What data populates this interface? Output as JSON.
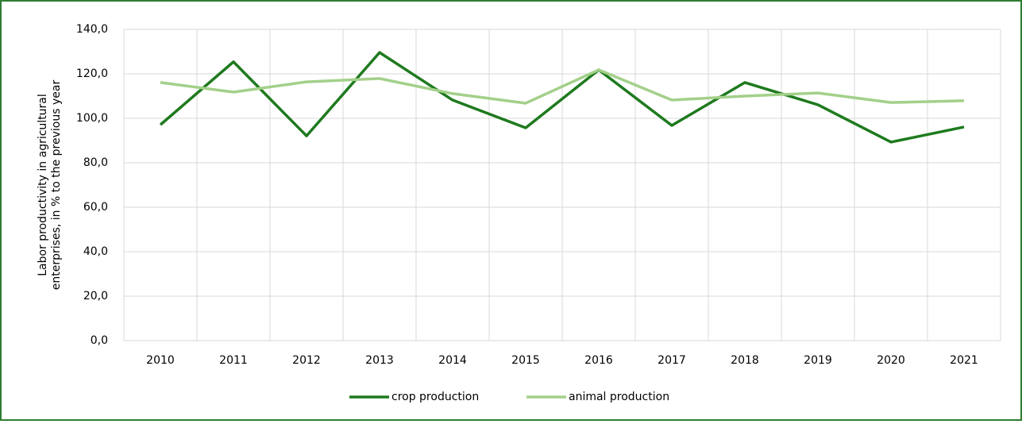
{
  "chart_data": {
    "type": "line",
    "y_label": "Labor productivity in agricultural enterprises, in % to the previous year",
    "categories": [
      "2010",
      "2011",
      "2012",
      "2013",
      "2014",
      "2015",
      "2016",
      "2017",
      "2018",
      "2019",
      "2020",
      "2021"
    ],
    "series": [
      {
        "name": "crop production",
        "color": "#1e7a1e",
        "values": [
          97.1,
          125.4,
          92.1,
          129.6,
          108.2,
          95.7,
          121.8,
          96.8,
          116.1,
          106.1,
          89.3,
          96.1
        ]
      },
      {
        "name": "animal production",
        "color": "#a3d08a",
        "values": [
          116.1,
          111.8,
          116.4,
          117.9,
          111.1,
          106.8,
          121.8,
          108.2,
          110.0,
          111.4,
          107.1,
          107.9
        ]
      }
    ],
    "ylim": [
      0,
      140
    ],
    "yticks": [
      {
        "value": 0,
        "label": "0,0"
      },
      {
        "value": 20,
        "label": "20,0"
      },
      {
        "value": 40,
        "label": "40,0"
      },
      {
        "value": 60,
        "label": "60,0"
      },
      {
        "value": 80,
        "label": "80,0"
      },
      {
        "value": 100,
        "label": "100,0"
      },
      {
        "value": 120,
        "label": "120,0"
      },
      {
        "value": 140,
        "label": "140,0"
      }
    ],
    "grid": true,
    "legend": "bottom"
  }
}
